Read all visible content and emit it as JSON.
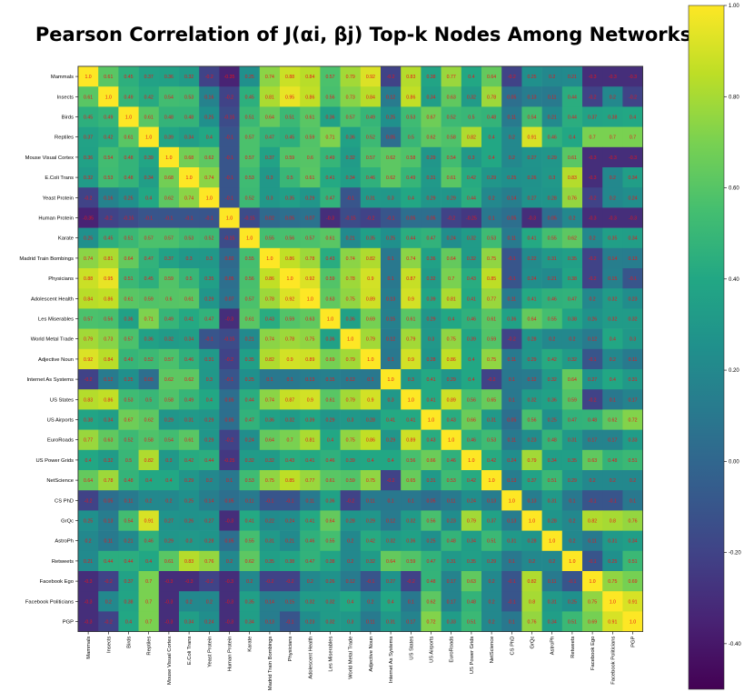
{
  "chart_data": {
    "type": "heatmap",
    "title": "Pearson Correlation of J(αi, βj) Top-k Nodes Among Networks",
    "labels": [
      "Mammals",
      "Insects",
      "Birds",
      "Reptiles",
      "Mouse Visual Cortex",
      "E.Coli Trans",
      "Yeast Protein",
      "Human Protein",
      "Karate",
      "Madrid Train Bombings",
      "Physicians",
      "Adolescent Health",
      "Les Miserables",
      "World Metal Trade",
      "Adjective Noun",
      "Internet As Systems",
      "US States",
      "US Airports",
      "EuroRoads",
      "US Power Grids",
      "NetScience",
      "CS PhD",
      "GrQc",
      "AstroPh",
      "Retweets",
      "Facebook Ego",
      "Facebook Politicians",
      "PGP"
    ],
    "values": [
      [
        1.0,
        0.61,
        0.45,
        0.37,
        0.36,
        0.32,
        -0.2,
        -0.35,
        0.25,
        0.74,
        0.88,
        0.84,
        0.57,
        0.79,
        0.92,
        -0.2,
        0.83,
        0.38,
        0.77,
        0.4,
        0.64,
        -0.2,
        0.25,
        0.2,
        0.21,
        -0.3,
        -0.3,
        -0.3
      ],
      [
        0.61,
        1.0,
        0.49,
        0.42,
        0.54,
        0.53,
        0.16,
        -0.2,
        0.45,
        0.81,
        0.95,
        0.86,
        0.56,
        0.73,
        0.84,
        0.12,
        0.86,
        0.34,
        0.63,
        0.32,
        0.78,
        0.05,
        0.13,
        0.11,
        0.44,
        -0.2,
        0.2,
        -0.2
      ],
      [
        0.45,
        0.49,
        1.0,
        0.61,
        0.48,
        0.48,
        0.25,
        -0.15,
        0.51,
        0.64,
        0.51,
        0.61,
        0.36,
        0.57,
        0.49,
        0.25,
        0.53,
        0.67,
        0.52,
        0.5,
        0.48,
        0.11,
        0.54,
        0.21,
        0.44,
        0.37,
        0.38,
        0.4
      ],
      [
        0.37,
        0.42,
        0.61,
        1.0,
        0.39,
        0.34,
        0.4,
        -0.1,
        0.57,
        0.47,
        0.45,
        0.59,
        0.71,
        0.36,
        0.52,
        0.05,
        0.5,
        0.62,
        0.58,
        0.82,
        0.4,
        0.2,
        0.91,
        0.46,
        0.4,
        0.7,
        0.7,
        0.7
      ],
      [
        0.36,
        0.54,
        0.48,
        0.39,
        1.0,
        0.68,
        0.62,
        -0.1,
        0.57,
        0.37,
        0.59,
        0.6,
        0.49,
        0.32,
        0.57,
        0.62,
        0.58,
        0.29,
        0.54,
        0.3,
        0.4,
        0.2,
        0.27,
        0.29,
        0.61,
        -0.3,
        -0.3,
        -0.3
      ],
      [
        0.32,
        0.53,
        0.48,
        0.34,
        0.68,
        1.0,
        0.74,
        -0.1,
        0.53,
        0.3,
        0.5,
        0.61,
        0.41,
        0.34,
        0.46,
        0.62,
        0.49,
        0.31,
        0.61,
        0.42,
        0.29,
        0.25,
        0.26,
        0.3,
        0.83,
        -0.3,
        0.2,
        0.34
      ],
      [
        -0.2,
        0.16,
        0.25,
        0.4,
        0.62,
        0.74,
        1.0,
        -0.1,
        0.52,
        0.3,
        0.35,
        0.29,
        0.47,
        -0.1,
        0.31,
        0.3,
        0.4,
        0.29,
        0.29,
        0.44,
        0.2,
        0.14,
        0.27,
        0.28,
        0.76,
        -0.2,
        0.2,
        0.24
      ],
      [
        -0.35,
        -0.2,
        -0.15,
        -0.1,
        -0.1,
        -0.1,
        -0.1,
        1.0,
        -0.15,
        0.02,
        0.05,
        0.07,
        -0.3,
        -0.15,
        -0.2,
        -0.1,
        0.05,
        0.05,
        -0.2,
        -0.25,
        0.1,
        0.05,
        -0.3,
        0.05,
        0.2,
        -0.3,
        -0.3,
        -0.3
      ],
      [
        0.25,
        0.45,
        0.51,
        0.57,
        0.57,
        0.53,
        0.52,
        -0.15,
        1.0,
        0.55,
        0.56,
        0.57,
        0.61,
        0.21,
        0.35,
        0.25,
        0.44,
        0.47,
        0.24,
        0.32,
        0.53,
        0.11,
        0.41,
        0.55,
        0.62,
        0.2,
        0.35,
        0.34
      ],
      [
        0.74,
        0.81,
        0.64,
        0.47,
        0.37,
        0.3,
        0.3,
        0.02,
        0.55,
        1.0,
        0.86,
        0.78,
        0.43,
        0.74,
        0.82,
        0.1,
        0.74,
        0.36,
        0.64,
        0.32,
        0.75,
        -0.1,
        0.22,
        0.31,
        0.35,
        -0.2,
        0.14,
        0.13
      ],
      [
        0.88,
        0.95,
        0.51,
        0.45,
        0.59,
        0.5,
        0.35,
        0.05,
        0.56,
        0.86,
        1.0,
        0.92,
        0.59,
        0.78,
        0.9,
        0.1,
        0.87,
        0.32,
        0.7,
        0.43,
        0.85,
        -0.1,
        0.24,
        0.21,
        0.38,
        -0.2,
        0.15,
        -0.1
      ],
      [
        0.84,
        0.86,
        0.61,
        0.59,
        0.6,
        0.61,
        0.29,
        0.07,
        0.57,
        0.78,
        0.92,
        1.0,
        0.63,
        0.75,
        0.89,
        0.13,
        0.9,
        0.39,
        0.81,
        0.41,
        0.77,
        0.11,
        0.41,
        0.46,
        0.47,
        0.2,
        0.32,
        0.23
      ],
      [
        0.57,
        0.56,
        0.36,
        0.71,
        0.49,
        0.41,
        0.47,
        -0.3,
        0.61,
        0.43,
        0.59,
        0.63,
        1.0,
        0.36,
        0.69,
        0.15,
        0.61,
        0.29,
        0.4,
        0.46,
        0.61,
        0.36,
        0.64,
        0.55,
        0.38,
        0.26,
        0.32,
        0.32
      ],
      [
        0.79,
        0.73,
        0.57,
        0.36,
        0.32,
        0.34,
        -0.1,
        -0.15,
        0.21,
        0.74,
        0.78,
        0.75,
        0.36,
        1.0,
        0.79,
        0.12,
        0.79,
        0.3,
        0.75,
        0.39,
        0.59,
        -0.2,
        0.28,
        0.2,
        0.2,
        0.12,
        0.4,
        0.3
      ],
      [
        0.92,
        0.84,
        0.49,
        0.52,
        0.57,
        0.46,
        0.31,
        -0.2,
        0.35,
        0.82,
        0.9,
        0.89,
        0.69,
        0.79,
        1.0,
        0.1,
        0.9,
        0.28,
        0.86,
        0.4,
        0.75,
        0.11,
        0.29,
        0.42,
        0.32,
        -0.1,
        0.2,
        0.11
      ],
      [
        -0.2,
        0.12,
        0.25,
        0.05,
        0.62,
        0.62,
        0.3,
        -0.1,
        0.25,
        0.1,
        0.1,
        0.13,
        0.15,
        0.12,
        0.1,
        1.0,
        0.3,
        0.41,
        0.29,
        0.4,
        -0.2,
        0.1,
        0.12,
        0.32,
        0.64,
        0.27,
        0.4,
        0.31
      ],
      [
        0.83,
        0.86,
        0.53,
        0.5,
        0.58,
        0.49,
        0.4,
        0.05,
        0.44,
        0.74,
        0.87,
        0.9,
        0.61,
        0.79,
        0.9,
        0.3,
        1.0,
        0.41,
        0.89,
        0.56,
        0.65,
        0.1,
        0.32,
        0.36,
        0.59,
        -0.2,
        0.1,
        0.17
      ],
      [
        0.38,
        0.34,
        0.67,
        0.62,
        0.29,
        0.31,
        0.29,
        0.05,
        0.47,
        0.36,
        0.32,
        0.39,
        0.29,
        0.3,
        0.28,
        0.41,
        0.41,
        1.0,
        0.43,
        0.66,
        0.31,
        0.05,
        0.56,
        0.25,
        0.47,
        0.48,
        0.62,
        0.72
      ],
      [
        0.77,
        0.63,
        0.52,
        0.58,
        0.54,
        0.61,
        0.29,
        -0.2,
        0.24,
        0.64,
        0.7,
        0.81,
        0.4,
        0.75,
        0.86,
        0.29,
        0.89,
        0.43,
        1.0,
        0.46,
        0.53,
        0.11,
        0.23,
        0.48,
        0.31,
        0.17,
        0.17,
        0.33
      ],
      [
        0.4,
        0.32,
        0.5,
        0.82,
        0.3,
        0.42,
        0.44,
        -0.25,
        0.32,
        0.32,
        0.43,
        0.41,
        0.46,
        0.39,
        0.4,
        0.4,
        0.56,
        0.66,
        0.46,
        1.0,
        0.42,
        0.24,
        0.79,
        0.34,
        0.35,
        0.63,
        0.48,
        0.51
      ],
      [
        0.64,
        0.78,
        0.48,
        0.4,
        0.4,
        0.29,
        0.2,
        0.1,
        0.53,
        0.75,
        0.85,
        0.77,
        0.61,
        0.59,
        0.75,
        -0.2,
        0.65,
        0.31,
        0.53,
        0.42,
        1.0,
        0.13,
        0.37,
        0.51,
        0.29,
        0.2,
        0.2,
        0.2
      ],
      [
        -0.2,
        0.05,
        0.11,
        0.2,
        0.2,
        0.25,
        0.14,
        0.05,
        0.11,
        -0.1,
        -0.1,
        0.11,
        0.36,
        -0.2,
        0.11,
        0.1,
        0.1,
        0.05,
        0.11,
        0.24,
        0.13,
        1.0,
        0.13,
        0.31,
        0.1,
        -0.1,
        -0.1,
        0.1
      ],
      [
        0.25,
        0.13,
        0.54,
        0.91,
        0.27,
        0.26,
        0.27,
        -0.3,
        0.41,
        0.22,
        0.24,
        0.41,
        0.64,
        0.28,
        0.29,
        0.12,
        0.32,
        0.56,
        0.23,
        0.79,
        0.37,
        0.13,
        1.0,
        0.28,
        0.2,
        0.82,
        0.8,
        0.76
      ],
      [
        0.2,
        0.11,
        0.21,
        0.46,
        0.29,
        0.3,
        0.28,
        0.05,
        0.55,
        0.31,
        0.21,
        0.46,
        0.55,
        0.2,
        0.42,
        0.32,
        0.36,
        0.25,
        0.48,
        0.34,
        0.51,
        0.31,
        0.28,
        1.0,
        0.2,
        0.11,
        0.31,
        0.34
      ],
      [
        0.21,
        0.44,
        0.44,
        0.4,
        0.61,
        0.83,
        0.76,
        0.2,
        0.62,
        0.35,
        0.38,
        0.47,
        0.38,
        0.2,
        0.32,
        0.64,
        0.59,
        0.47,
        0.31,
        0.35,
        0.29,
        0.1,
        0.2,
        0.2,
        1.0,
        -0.1,
        0.25,
        0.51
      ],
      [
        -0.3,
        -0.2,
        0.37,
        0.7,
        -0.3,
        -0.3,
        -0.2,
        -0.3,
        0.2,
        -0.2,
        -0.2,
        0.2,
        0.26,
        0.12,
        -0.1,
        0.27,
        -0.2,
        0.48,
        0.17,
        0.63,
        0.2,
        -0.1,
        0.82,
        0.11,
        -0.1,
        1.0,
        0.75,
        0.69
      ],
      [
        -0.3,
        0.2,
        0.38,
        0.7,
        -0.3,
        0.2,
        0.2,
        -0.3,
        0.35,
        0.14,
        0.15,
        0.32,
        0.32,
        0.4,
        0.2,
        0.4,
        0.1,
        0.62,
        0.17,
        0.48,
        0.2,
        -0.1,
        0.8,
        0.31,
        0.25,
        0.75,
        1.0,
        0.91
      ],
      [
        -0.3,
        -0.2,
        0.4,
        0.7,
        -0.3,
        0.34,
        0.24,
        -0.3,
        0.34,
        0.13,
        -0.1,
        0.23,
        0.32,
        0.3,
        0.11,
        0.31,
        0.17,
        0.72,
        0.33,
        0.51,
        0.2,
        0.1,
        0.76,
        0.34,
        0.51,
        0.69,
        0.91,
        1.0
      ]
    ],
    "vmin": -0.5,
    "vmax": 1.0,
    "colorbar_ticks": [
      "1.00",
      "0.80",
      "0.60",
      "0.40",
      "0.20",
      "0.00",
      "-0.20",
      "-0.40"
    ],
    "colormap": "viridis",
    "text_color": "#e8141b"
  }
}
